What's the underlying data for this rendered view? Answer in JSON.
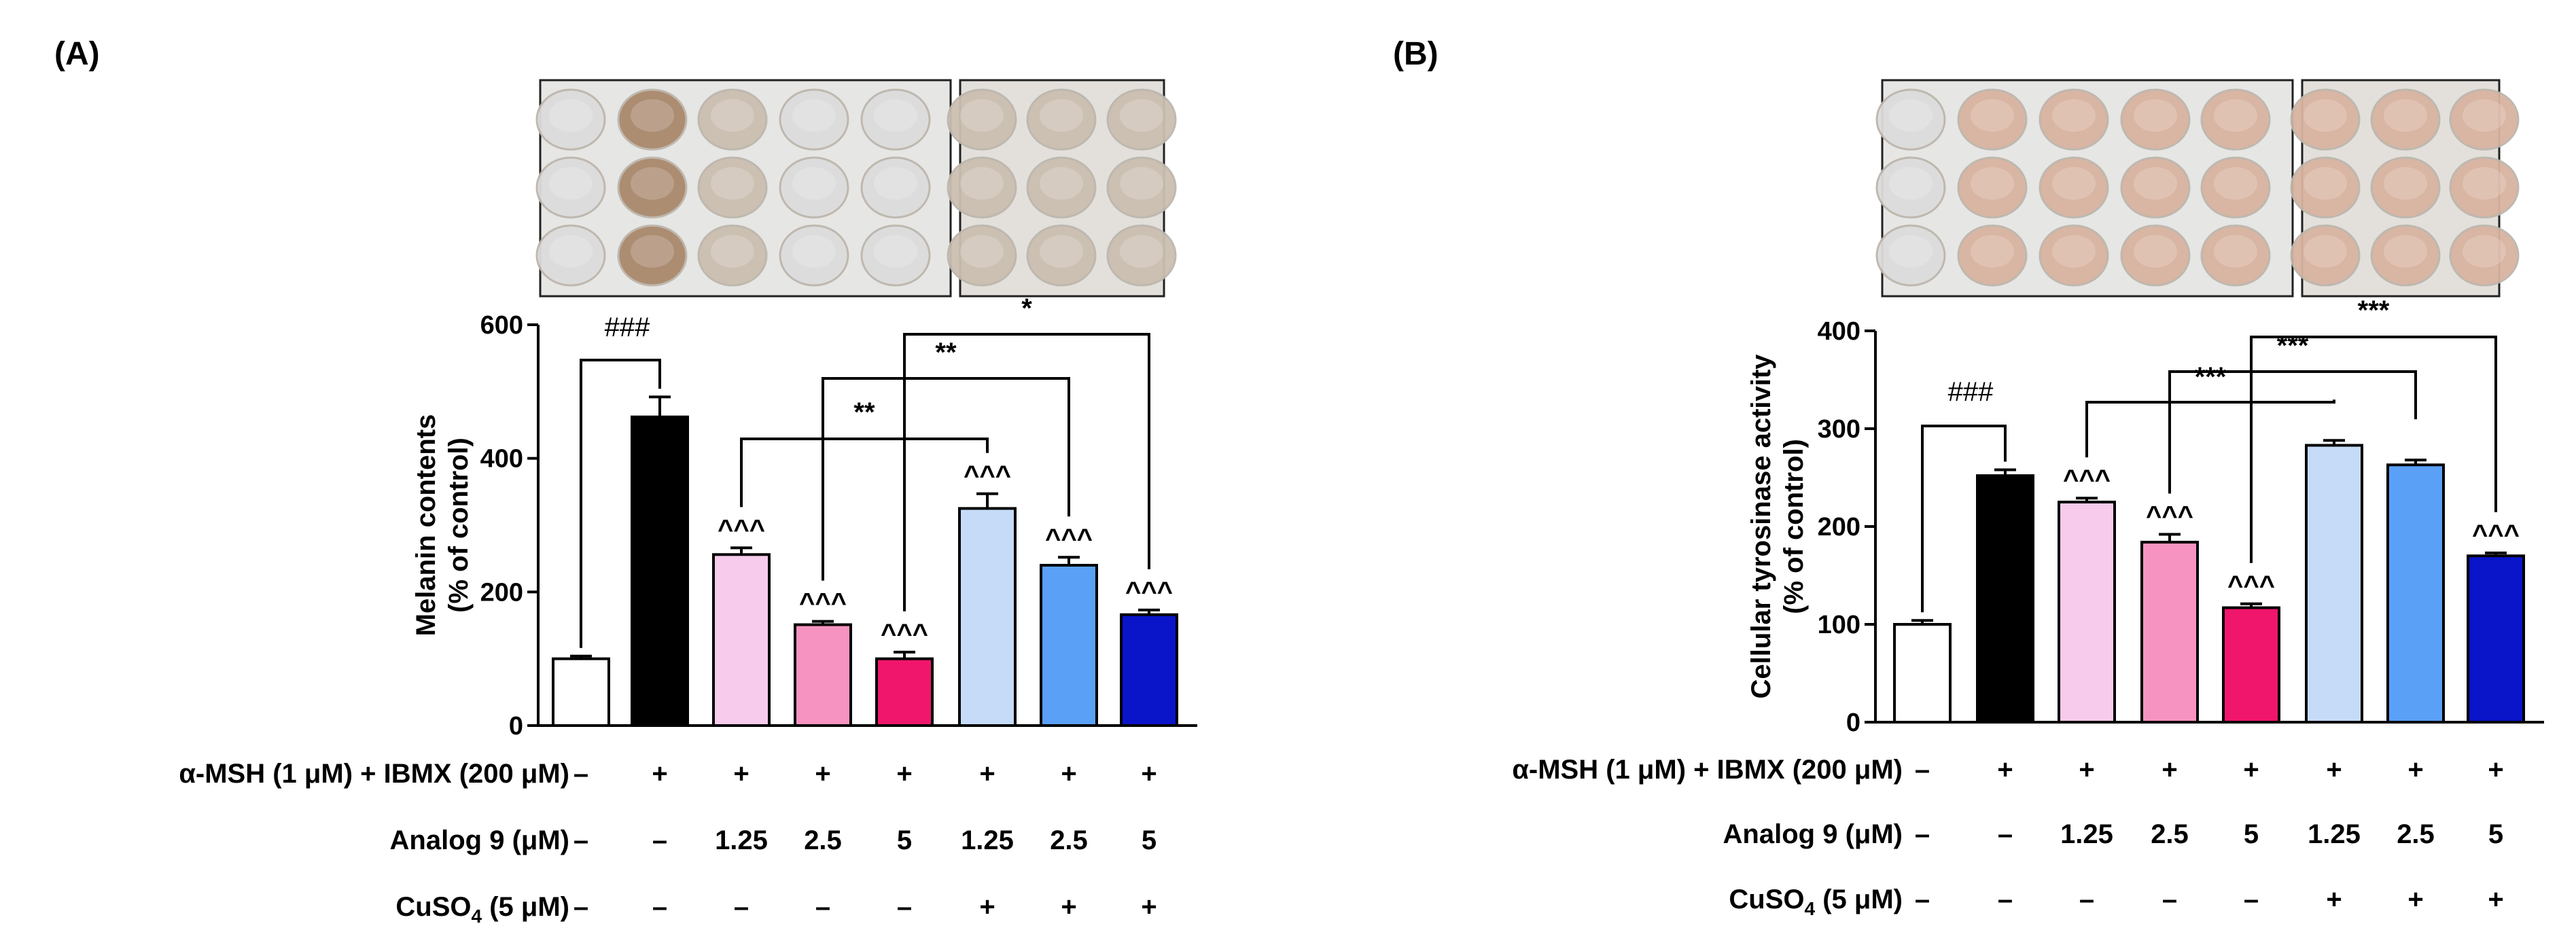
{
  "colors": {
    "white": "#ffffff",
    "black": "#000000",
    "light_pink": "#f7cbeb",
    "pink": "#f793c0",
    "magenta": "#f0166c",
    "light_blue": "#c5dbf7",
    "blue": "#5aa0f7",
    "dark_blue": "#0a14c8",
    "well_clear": "#dcdcdc",
    "well_brown": "#a9896c",
    "well_pinkish": "#d9b3a0"
  },
  "conditions": {
    "row1_label": "α-MSH (1 μM) + IBMX (200 μM)",
    "row2_label": "Analog 9 (μM)",
    "row3_label_base": "CuSO",
    "row3_label_sub": "4",
    "row3_label_tail": " (5 μM)",
    "row1": [
      "–",
      "+",
      "+",
      "+",
      "+",
      "+",
      "+",
      "+"
    ],
    "row2": [
      "–",
      "–",
      "1.25",
      "2.5",
      "5",
      "1.25",
      "2.5",
      "5"
    ],
    "row3": [
      "–",
      "–",
      "–",
      "–",
      "–",
      "+",
      "+",
      "+"
    ]
  },
  "chart_data": [
    {
      "type": "bar",
      "panel_label": "(A)",
      "ylabel_line1": "Melanin contents",
      "ylabel_line2": "(% of control)",
      "ylim": [
        0,
        600
      ],
      "yticks": [
        "0",
        "200",
        "400",
        "600"
      ],
      "values": [
        100,
        462,
        256,
        151,
        100,
        325,
        240,
        166
      ],
      "errors": [
        4,
        30,
        10,
        5,
        10,
        22,
        12,
        7
      ],
      "bar_colors": [
        "white",
        "black",
        "light_pink",
        "pink",
        "magenta",
        "light_blue",
        "blue",
        "dark_blue"
      ],
      "markers": [
        "",
        "",
        "^^^",
        "^^^",
        "^^^",
        "^^^",
        "^^^",
        "^^^"
      ],
      "hash_label": "###",
      "comparisons": [
        {
          "from": 2,
          "to": 5,
          "label": "**"
        },
        {
          "from": 3,
          "to": 6,
          "label": "**"
        },
        {
          "from": 4,
          "to": 7,
          "label": "*"
        }
      ],
      "wells": [
        [
          "clear",
          "brown",
          "faint",
          "clear",
          "clear",
          "faint",
          "faint",
          "faint"
        ],
        [
          "clear",
          "brown",
          "faint",
          "clear",
          "clear",
          "faint",
          "faint",
          "faint"
        ],
        [
          "clear",
          "brown",
          "faint",
          "clear",
          "clear",
          "faint",
          "faint",
          "faint"
        ]
      ]
    },
    {
      "type": "bar",
      "panel_label": "(B)",
      "ylabel_line1": "Cellular tyrosinase activity",
      "ylabel_line2": "(% of control)",
      "ylim": [
        0,
        400
      ],
      "yticks": [
        "0",
        "100",
        "200",
        "300",
        "400"
      ],
      "values": [
        100,
        252,
        225,
        184,
        117,
        283,
        263,
        170
      ],
      "errors": [
        4,
        6,
        4,
        8,
        4,
        5,
        5,
        3
      ],
      "bar_colors": [
        "white",
        "black",
        "light_pink",
        "pink",
        "magenta",
        "light_blue",
        "blue",
        "dark_blue"
      ],
      "markers": [
        "",
        "",
        "^^^",
        "^^^",
        "^^^",
        "",
        "",
        "^^^"
      ],
      "hash_label": "###",
      "comparisons": [
        {
          "from": 2,
          "to": 5,
          "label": "***"
        },
        {
          "from": 3,
          "to": 6,
          "label": "***"
        },
        {
          "from": 4,
          "to": 7,
          "label": "***"
        }
      ],
      "wells": [
        [
          "clear",
          "pinkish",
          "pinkish",
          "pinkish",
          "pinkish",
          "pinkish",
          "pinkish",
          "pinkish"
        ],
        [
          "clear",
          "pinkish",
          "pinkish",
          "pinkish",
          "pinkish",
          "pinkish",
          "pinkish",
          "pinkish"
        ],
        [
          "clear",
          "pinkish",
          "pinkish",
          "pinkish",
          "pinkish",
          "pinkish",
          "pinkish",
          "pinkish"
        ]
      ]
    }
  ]
}
